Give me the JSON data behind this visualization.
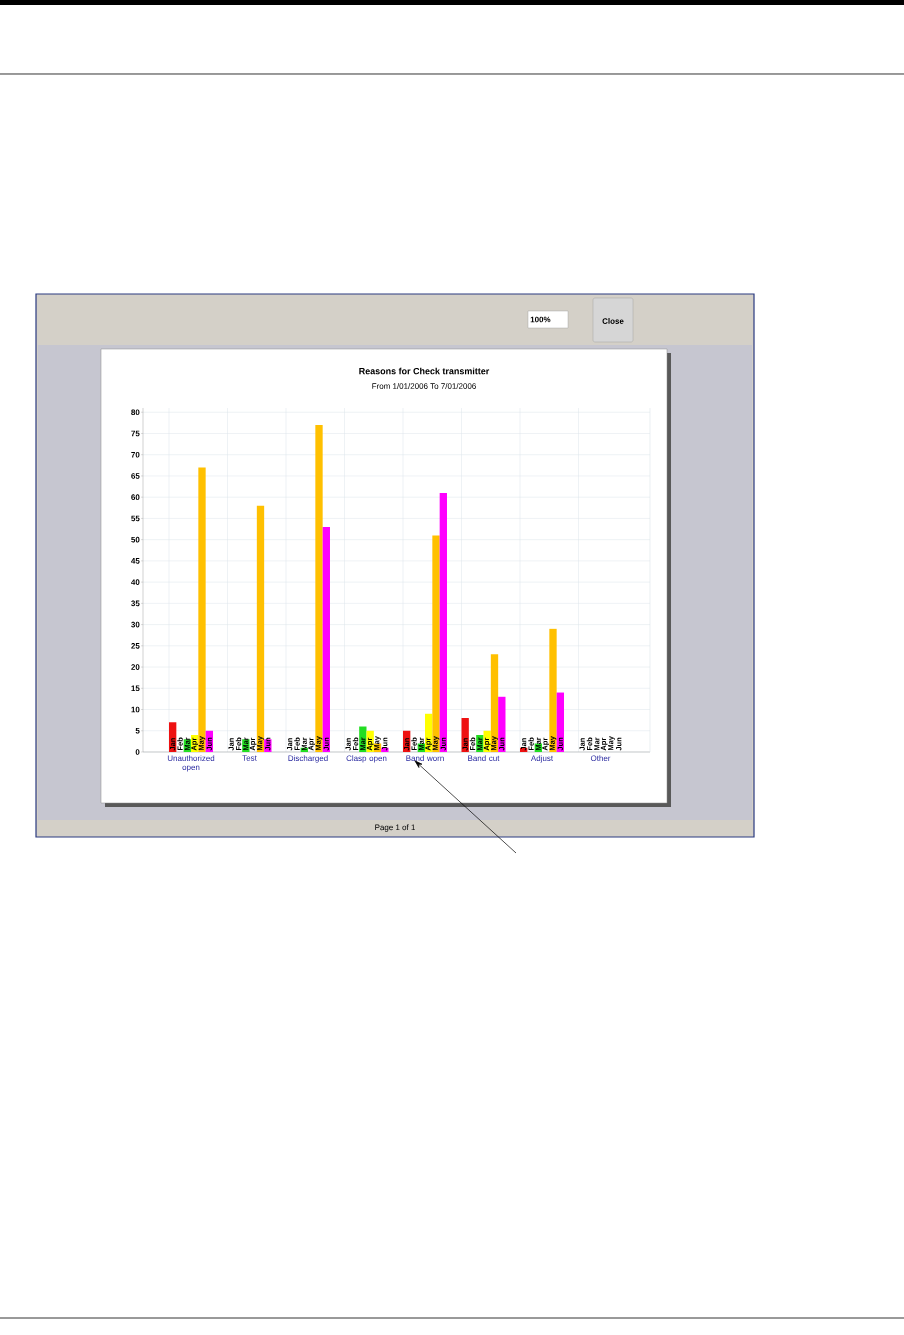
{
  "chart_data": {
    "type": "bar",
    "title": "Reasons for Check transmitter",
    "subtitle": "From 1/01/2006 To 7/01/2006",
    "categories": [
      "Unauthorized open",
      "Test",
      "Discharged",
      "Clasp open",
      "Band worn",
      "Band cut",
      "Adjust",
      "Other"
    ],
    "series": [
      {
        "name": "Jan",
        "color": "#ee1111",
        "values": [
          7,
          0,
          0,
          0,
          5,
          8,
          1,
          0
        ]
      },
      {
        "name": "Feb",
        "values": [
          0,
          0,
          0,
          0,
          0,
          0,
          0,
          0
        ]
      },
      {
        "name": "Mar",
        "color": "#22dd22",
        "values": [
          3,
          3,
          1,
          6,
          2,
          4,
          2,
          0
        ]
      },
      {
        "name": "Apr",
        "color": "#ffff00",
        "values": [
          4,
          0,
          0,
          5,
          9,
          5,
          0,
          0
        ]
      },
      {
        "name": "May",
        "color": "#ffc000",
        "values": [
          67,
          58,
          77,
          2,
          51,
          23,
          29,
          0
        ]
      },
      {
        "name": "Jun",
        "color": "#ff00ff",
        "values": [
          5,
          3,
          53,
          1,
          61,
          13,
          14,
          0
        ]
      }
    ],
    "ylim": [
      0,
      81
    ],
    "yticks": [
      0,
      5,
      10,
      15,
      20,
      25,
      30,
      35,
      40,
      45,
      50,
      55,
      60,
      65,
      70,
      75,
      80
    ],
    "grid": true,
    "annotations": [
      "100%",
      "Close",
      "Page 1 of 1"
    ]
  }
}
